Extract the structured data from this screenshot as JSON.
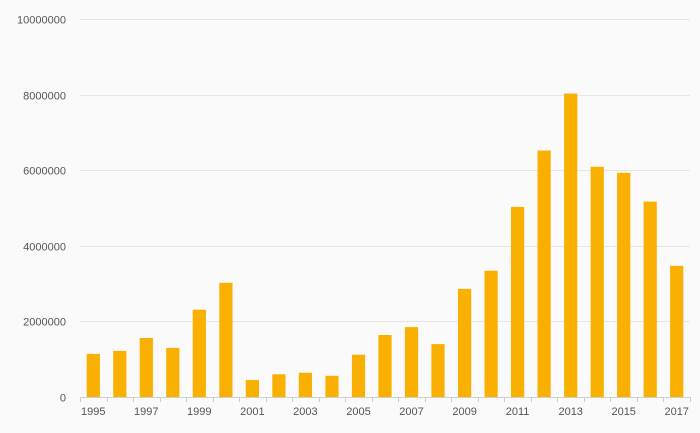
{
  "chart_data": {
    "type": "bar",
    "title": "",
    "xlabel": "",
    "ylabel": "",
    "ylim": [
      0,
      10000000
    ],
    "yticks": [
      "0",
      "2000000",
      "4000000",
      "6000000",
      "8000000",
      "10000000"
    ],
    "grid": true,
    "legend": "none",
    "categories": [
      "1995",
      "1996",
      "1997",
      "1998",
      "1999",
      "2000",
      "2001",
      "2002",
      "2003",
      "2004",
      "2005",
      "2006",
      "2007",
      "2008",
      "2009",
      "2010",
      "2011",
      "2012",
      "2013",
      "2014",
      "2015",
      "2016",
      "2017"
    ],
    "xtick_labels": [
      "1995",
      "1997",
      "1999",
      "2001",
      "2003",
      "2005",
      "2007",
      "2009",
      "2011",
      "2013",
      "2015",
      "2017"
    ],
    "values": [
      1140000,
      1220000,
      1560000,
      1300000,
      2310000,
      3020000,
      450000,
      600000,
      640000,
      560000,
      1120000,
      1640000,
      1850000,
      1400000,
      2860000,
      3340000,
      5030000,
      6520000,
      8030000,
      6090000,
      5930000,
      5170000,
      3470000
    ],
    "bar_color": "#f9b000",
    "grid_color": "#e6e6e6"
  }
}
